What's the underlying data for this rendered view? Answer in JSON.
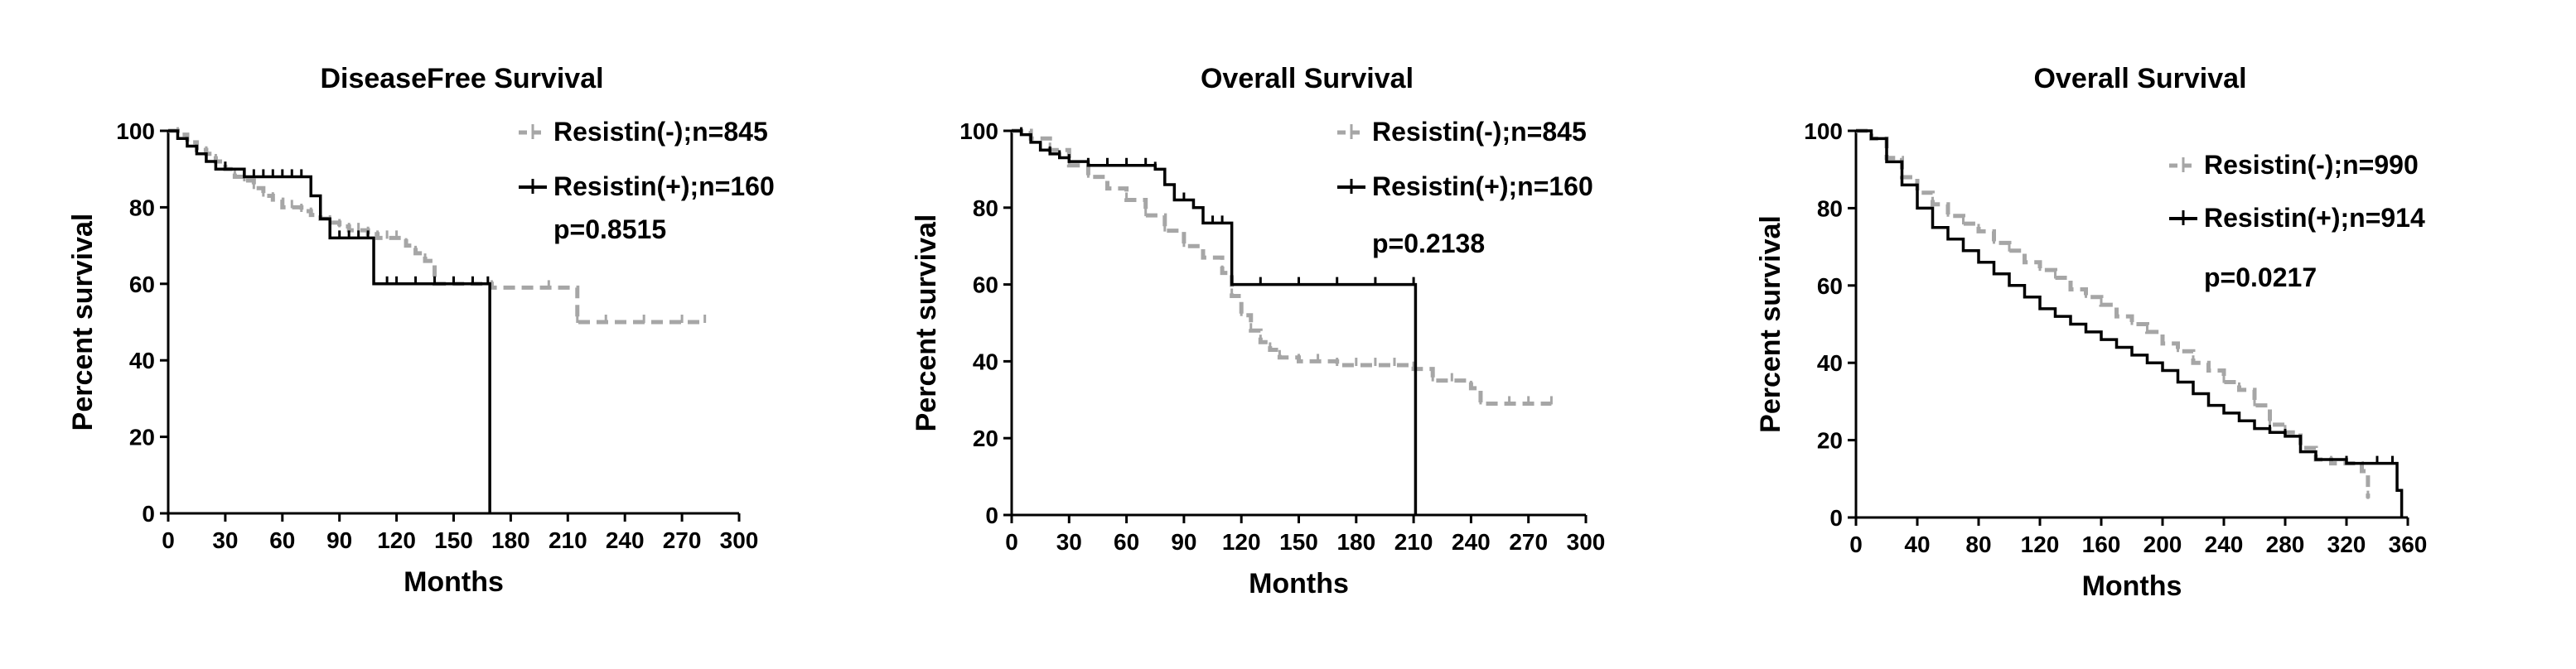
{
  "colors": {
    "negative": "#a6a6a6",
    "positive": "#000000",
    "axis": "#000000"
  },
  "chart_data": [
    {
      "type": "line",
      "title": "DiseaseFree Survival",
      "xlabel": "Months",
      "ylabel": "Percent survival",
      "xlim": [
        0,
        300
      ],
      "ylim": [
        0,
        100
      ],
      "xticks": [
        "0",
        "30",
        "60",
        "90",
        "120",
        "150",
        "180",
        "210",
        "240",
        "270",
        "300"
      ],
      "yticks": [
        "0",
        "20",
        "40",
        "60",
        "80",
        "100"
      ],
      "legend_position": "top-right",
      "pvalue": "p=0.8515",
      "series": [
        {
          "name": "Resistin(-);n=845",
          "style": "dashed",
          "color": "#a6a6a6",
          "x": [
            0,
            5,
            10,
            15,
            20,
            25,
            30,
            35,
            40,
            45,
            50,
            55,
            60,
            65,
            70,
            75,
            80,
            85,
            90,
            95,
            100,
            105,
            110,
            115,
            120,
            125,
            130,
            135,
            140,
            150,
            160,
            170,
            200,
            215,
            230,
            250,
            270,
            282
          ],
          "y": [
            100,
            99,
            97,
            95,
            94,
            92,
            90,
            88,
            87,
            85,
            83,
            82,
            80,
            80,
            79,
            78,
            77,
            76,
            75,
            74,
            74,
            73,
            72,
            72,
            72,
            70,
            68,
            66,
            60,
            60,
            60,
            59,
            59,
            50,
            50,
            50,
            50,
            50
          ]
        },
        {
          "name": "Resistin(+);n=160",
          "style": "solid",
          "color": "#000000",
          "x": [
            0,
            5,
            10,
            15,
            20,
            25,
            30,
            40,
            45,
            50,
            55,
            60,
            65,
            70,
            75,
            80,
            85,
            90,
            95,
            100,
            105,
            108,
            115,
            120,
            130,
            140,
            150,
            160,
            168,
            169
          ],
          "y": [
            100,
            98,
            96,
            94,
            92,
            90,
            90,
            88,
            88,
            88,
            88,
            88,
            88,
            88,
            83,
            77,
            72,
            72,
            72,
            72,
            72,
            60,
            60,
            60,
            60,
            60,
            60,
            60,
            60,
            0
          ]
        }
      ]
    },
    {
      "type": "line",
      "title": "Overall Survival",
      "xlabel": "Months",
      "ylabel": "Percent survival",
      "xlim": [
        0,
        300
      ],
      "ylim": [
        0,
        100
      ],
      "xticks": [
        "0",
        "30",
        "60",
        "90",
        "120",
        "150",
        "180",
        "210",
        "240",
        "270",
        "300"
      ],
      "yticks": [
        "0",
        "20",
        "40",
        "60",
        "80",
        "100"
      ],
      "legend_position": "top-right",
      "pvalue": "p=0.2138",
      "series": [
        {
          "name": "Resistin(-);n=845",
          "style": "dashed",
          "color": "#a6a6a6",
          "x": [
            0,
            10,
            20,
            30,
            40,
            50,
            60,
            70,
            80,
            90,
            100,
            110,
            115,
            120,
            125,
            130,
            135,
            140,
            150,
            160,
            170,
            180,
            190,
            200,
            210,
            220,
            230,
            240,
            245,
            260,
            270,
            282
          ],
          "y": [
            100,
            98,
            95,
            91,
            88,
            85,
            82,
            78,
            74,
            70,
            67,
            63,
            57,
            52,
            48,
            45,
            43,
            41,
            40,
            40,
            39,
            39,
            39,
            39,
            38,
            35,
            35,
            33,
            29,
            29,
            29,
            29
          ]
        },
        {
          "name": "Resistin(+);n=160",
          "style": "solid",
          "color": "#000000",
          "x": [
            0,
            5,
            10,
            15,
            20,
            25,
            30,
            40,
            50,
            60,
            70,
            75,
            80,
            85,
            90,
            95,
            100,
            105,
            110,
            115,
            130,
            150,
            170,
            190,
            210,
            211
          ],
          "y": [
            100,
            99,
            97,
            95,
            94,
            93,
            92,
            91,
            91,
            91,
            91,
            90,
            86,
            82,
            82,
            80,
            76,
            76,
            76,
            60,
            60,
            60,
            60,
            60,
            60,
            0
          ]
        }
      ]
    },
    {
      "type": "line",
      "title": "Overall Survival",
      "xlabel": "Months",
      "ylabel": "Percent survival",
      "xlim": [
        0,
        360
      ],
      "ylim": [
        0,
        100
      ],
      "xticks": [
        "0",
        "40",
        "80",
        "120",
        "160",
        "200",
        "240",
        "280",
        "320",
        "360"
      ],
      "yticks": [
        "0",
        "20",
        "40",
        "60",
        "80",
        "100"
      ],
      "legend_position": "top-right",
      "pvalue": "p=0.0217",
      "series": [
        {
          "name": "Resistin(-);n=990",
          "style": "dashed",
          "color": "#a6a6a6",
          "x": [
            0,
            10,
            20,
            30,
            40,
            50,
            60,
            70,
            80,
            90,
            100,
            110,
            120,
            130,
            140,
            150,
            160,
            170,
            180,
            190,
            200,
            210,
            220,
            230,
            240,
            250,
            260,
            270,
            280,
            290,
            300,
            310,
            320,
            330,
            334
          ],
          "y": [
            100,
            98,
            93,
            88,
            84,
            81,
            78,
            76,
            74,
            71,
            69,
            66,
            64,
            62,
            59,
            57,
            55,
            52,
            50,
            48,
            45,
            43,
            40,
            38,
            35,
            33,
            29,
            24,
            22,
            18,
            15,
            14,
            14,
            12,
            5
          ]
        },
        {
          "name": "Resistin(+);n=914",
          "style": "solid",
          "color": "#000000",
          "x": [
            0,
            10,
            20,
            30,
            40,
            50,
            60,
            70,
            80,
            90,
            100,
            110,
            120,
            130,
            140,
            150,
            160,
            170,
            180,
            190,
            200,
            210,
            220,
            230,
            240,
            250,
            260,
            270,
            280,
            290,
            300,
            320,
            340,
            350,
            353,
            356
          ],
          "y": [
            100,
            98,
            92,
            86,
            80,
            75,
            72,
            69,
            66,
            63,
            60,
            57,
            54,
            52,
            50,
            48,
            46,
            44,
            42,
            40,
            38,
            35,
            32,
            29,
            27,
            25,
            23,
            22,
            21,
            17,
            15,
            14,
            14,
            14,
            7,
            0
          ]
        }
      ]
    }
  ]
}
